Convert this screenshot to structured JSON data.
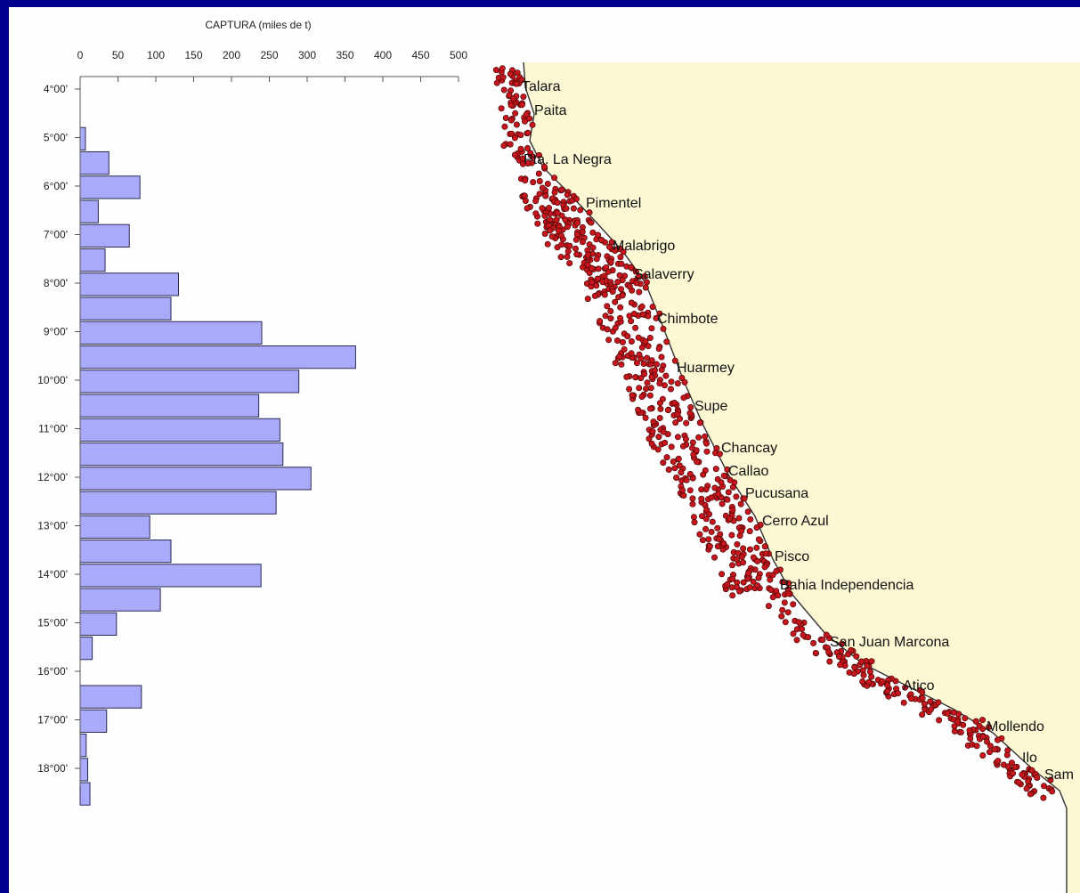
{
  "chart_data": {
    "type": "bar",
    "orientation": "horizontal",
    "title": "CAPTURA (miles de t)",
    "xlim": [
      0,
      500
    ],
    "x_ticks": [
      0,
      50,
      100,
      150,
      200,
      250,
      300,
      350,
      400,
      450,
      500
    ],
    "y_tick_labels": [
      "4°00'",
      "5°00'",
      "6°00'",
      "7°00'",
      "8°00'",
      "9°00'",
      "10°00'",
      "11°00'",
      "12°00'",
      "13°00'",
      "14°00'",
      "15°00'",
      "16°00'",
      "17°00'",
      "18°00'"
    ],
    "categories": [
      "4°00'-4°30'",
      "4°30'-5°00'",
      "5°00'-5°30'",
      "5°30'-6°00'",
      "6°00'-6°30'",
      "6°30'-7°00'",
      "7°00'-7°30'",
      "7°30'-8°00'",
      "8°00'-8°30'",
      "8°30'-9°00'",
      "9°00'-9°30'",
      "9°30'-10°00'",
      "10°00'-10°30'",
      "10°30'-11°00'",
      "11°00'-11°30'",
      "11°30'-12°00'",
      "12°00'-12°30'",
      "12°30'-13°00'",
      "13°00'-13°30'",
      "13°30'-14°00'",
      "14°00'-14°30'",
      "14°30'-15°00'",
      "15°00'-15°30'",
      "15°30'-16°00'",
      "16°00'-16°30'",
      "16°30'-17°00'",
      "17°00'-17°30'",
      "17°30'-18°00'",
      "18°00'-18°30'"
    ],
    "values": [
      0,
      7,
      38,
      79,
      24,
      65,
      33,
      130,
      120,
      240,
      364,
      289,
      236,
      264,
      268,
      305,
      259,
      92,
      120,
      239,
      106,
      48,
      16,
      0,
      81,
      35,
      8,
      10,
      13
    ],
    "grid": false,
    "colors": {
      "bar_fill": "#a9aaf9",
      "bar_stroke": "#2a2a55",
      "background": "#00008c",
      "land": "#fcf8d4",
      "point": "#c4161c"
    }
  },
  "map": {
    "cities": [
      "Talara",
      "Paita",
      "Pta. La Negra",
      "Pimentel",
      "Malabrigo",
      "Salaverry",
      "Chimbote",
      "Huarmey",
      "Supe",
      "Chancay",
      "Callao",
      "Pucusana",
      "Cerro Azul",
      "Pisco",
      "Bahia Independencia",
      "San Juan Marcona",
      "Atico",
      "Mollendo",
      "Ilo",
      "Sam"
    ]
  }
}
